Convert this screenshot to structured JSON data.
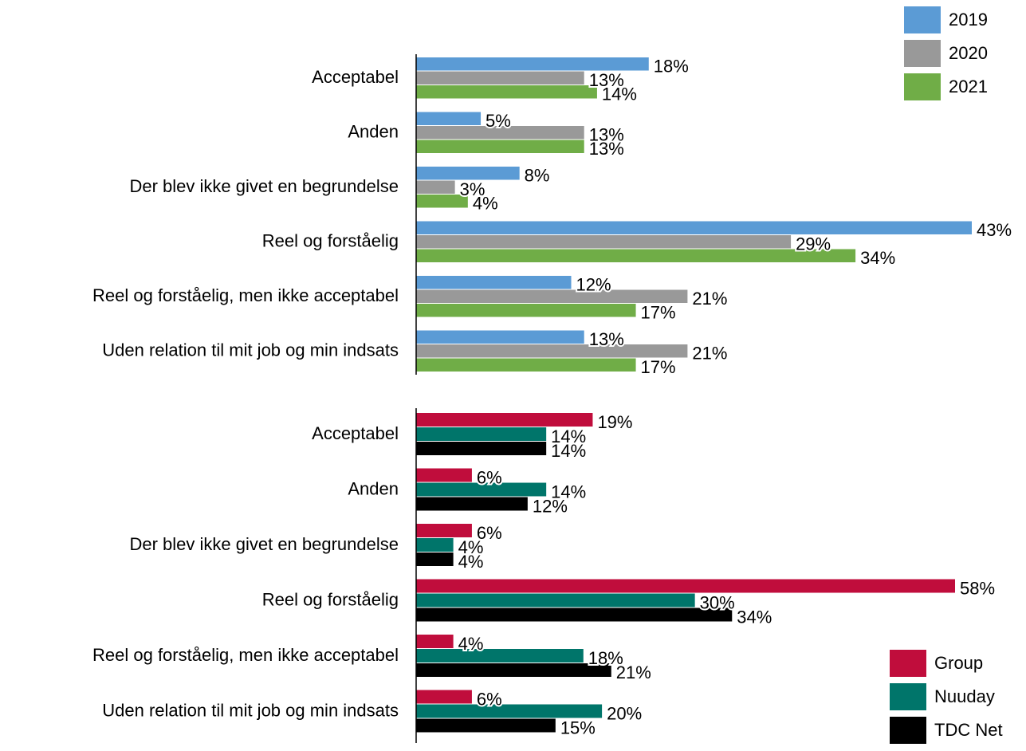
{
  "chart_data": [
    {
      "type": "barh",
      "categories": [
        "Acceptabel",
        "Anden",
        "Der blev ikke givet en begrundelse",
        "Reel og forståelig",
        "Reel og forståelig, men ikke acceptabel",
        "Uden relation til mit job og min indsats"
      ],
      "series": [
        {
          "name": "2019",
          "color": "#5b9bd5",
          "values": [
            18,
            5,
            8,
            43,
            12,
            13
          ],
          "value_labels": [
            "18%",
            "5%",
            "8%",
            "43%",
            "12%",
            "13%"
          ]
        },
        {
          "name": "2020",
          "color": "#999999",
          "values": [
            13,
            13,
            3,
            29,
            21,
            21
          ],
          "value_labels": [
            "13%",
            "13%",
            "3%",
            "29%",
            "21%",
            "21%"
          ]
        },
        {
          "name": "2021",
          "color": "#70ad47",
          "values": [
            14,
            13,
            4,
            34,
            17,
            17
          ],
          "value_labels": [
            "14%",
            "13%",
            "4%",
            "34%",
            "17%",
            "17%"
          ]
        }
      ],
      "xlim": [
        0,
        43
      ],
      "legend": "top-right"
    },
    {
      "type": "barh",
      "categories": [
        "Acceptabel",
        "Anden",
        "Der blev ikke givet en begrundelse",
        "Reel og forståelig",
        "Reel og forståelig, men ikke acceptabel",
        "Uden relation til mit job og min indsats"
      ],
      "series": [
        {
          "name": "Group",
          "color": "#c00d3c",
          "values": [
            19,
            6,
            6,
            58,
            4,
            6
          ],
          "value_labels": [
            "19%",
            "6%",
            "6%",
            "58%",
            "4%",
            "6%"
          ]
        },
        {
          "name": "Nuuday",
          "color": "#00756a",
          "values": [
            14,
            14,
            4,
            30,
            18,
            20
          ],
          "value_labels": [
            "14%",
            "14%",
            "4%",
            "30%",
            "18%",
            "20%"
          ]
        },
        {
          "name": "TDC Net",
          "color": "#000000",
          "values": [
            14,
            12,
            4,
            34,
            21,
            15
          ],
          "value_labels": [
            "14%",
            "12%",
            "4%",
            "34%",
            "21%",
            "15%"
          ]
        }
      ],
      "xlim": [
        0,
        58
      ],
      "legend": "bottom-right"
    }
  ]
}
